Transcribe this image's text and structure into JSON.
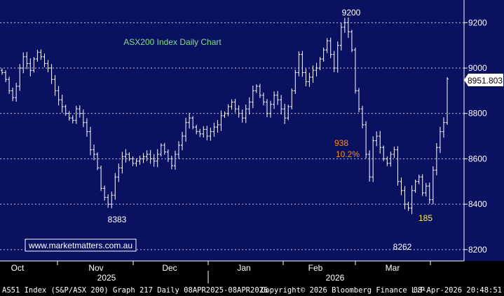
{
  "chart_data": {
    "type": "ohlc",
    "title": "ASX200 Index Daily Chart",
    "watermark": "www.marketmatters.com.au",
    "y_axis": {
      "ylim": [
        8150,
        9300
      ],
      "ticks": [
        8200,
        8400,
        8600,
        8800,
        9000,
        9200
      ],
      "side": "right"
    },
    "x_axis": {
      "months": [
        "Oct",
        "Nov",
        "Dec",
        "Jan",
        "Feb",
        "Mar"
      ],
      "years": [
        "2025",
        "2026"
      ]
    },
    "last_price": {
      "value": 8951.803,
      "label": "8951.803"
    },
    "annotations": [
      {
        "text": "9200",
        "value": 9200,
        "color": "#ffffff"
      },
      {
        "text": "8383",
        "value": 8383,
        "color": "#ffffff"
      },
      {
        "text": "8262",
        "value": 8262,
        "color": "#ffffff"
      },
      {
        "text": "938",
        "color": "#ff8c1a"
      },
      {
        "text": "10.2%",
        "color": "#ff8c1a"
      },
      {
        "text": "185",
        "color": "#ffee33"
      }
    ],
    "series": [
      {
        "type": "ohlc",
        "color": "#ffffff",
        "closes": [
          8980,
          8950,
          8900,
          8870,
          8920,
          9000,
          9050,
          9020,
          8990,
          9040,
          9070,
          9050,
          9020,
          9000,
          8950,
          8900,
          8860,
          8830,
          8800,
          8780,
          8770,
          8820,
          8800,
          8760,
          8720,
          8640,
          8620,
          8560,
          8470,
          8430,
          8400,
          8440,
          8520,
          8560,
          8610,
          8620,
          8600,
          8580,
          8590,
          8600,
          8610,
          8620,
          8600,
          8590,
          8620,
          8660,
          8630,
          8600,
          8570,
          8620,
          8660,
          8700,
          8760,
          8780,
          8740,
          8720,
          8710,
          8730,
          8700,
          8720,
          8740,
          8750,
          8790,
          8800,
          8830,
          8850,
          8820,
          8800,
          8780,
          8820,
          8850,
          8900,
          8920,
          8880,
          8850,
          8800,
          8840,
          8880,
          8860,
          8820,
          8780,
          8830,
          8900,
          8980,
          9060,
          8980,
          8940,
          8960,
          8990,
          9000,
          9040,
          9080,
          9120,
          9060,
          9000,
          9100,
          9180,
          9200,
          9160,
          9080,
          8900,
          8820,
          8750,
          8620,
          8520,
          8680,
          8700,
          8650,
          8600,
          8580,
          8620,
          8640,
          8500,
          8460,
          8400,
          8383,
          8460,
          8500,
          8520,
          8450,
          8480,
          8420,
          8550,
          8650,
          8720,
          8760,
          8951.803
        ]
      }
    ]
  },
  "footer": {
    "left": "AS51 Index (S&P/ASX 200) Graph 217 Daily 08APR2025-08APR2026",
    "center": "Copyright© 2026 Bloomberg Finance L.P.",
    "right": "08-Apr-2026 20:48:51"
  }
}
